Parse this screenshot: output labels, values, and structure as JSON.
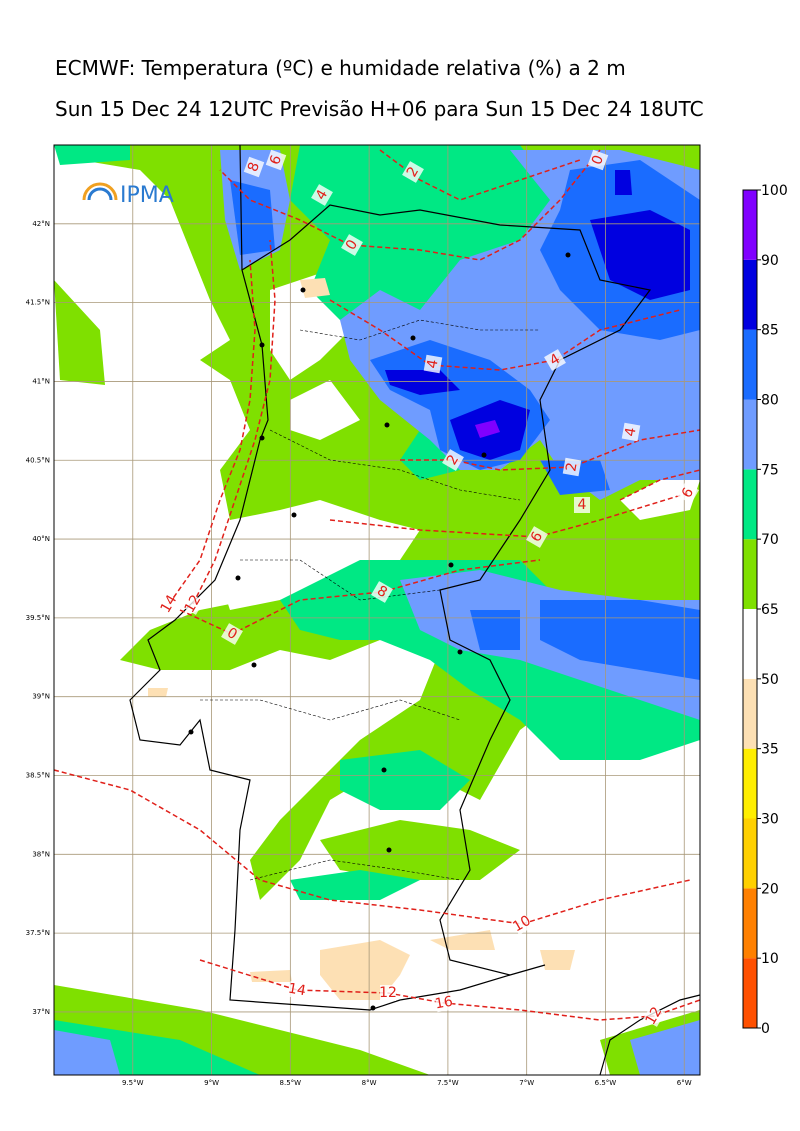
{
  "title": "ECMWF: Temperatura (ºC) e humidade relativa (%) a 2 m",
  "subtitle": "Sun 15 Dec 24 12UTC Previsão H+06 para Sun 15 Dec 24 18UTC",
  "logo": "IPMA",
  "map": {
    "lonlim": [
      -10,
      -5.9
    ],
    "latlim": [
      36.6,
      42.5
    ],
    "lon_ticks": [
      {
        "value": -9.5,
        "label": "9.5°W"
      },
      {
        "value": -9,
        "label": "9°W"
      },
      {
        "value": -8.5,
        "label": "8.5°W"
      },
      {
        "value": -8,
        "label": "8°W"
      },
      {
        "value": -7.5,
        "label": "7.5°W"
      },
      {
        "value": -7,
        "label": "7°W"
      },
      {
        "value": -6.5,
        "label": "6.5°W"
      },
      {
        "value": -6,
        "label": "6°W"
      }
    ],
    "lat_ticks": [
      {
        "value": 42,
        "label": "42°N"
      },
      {
        "value": 41.5,
        "label": "41.5°N"
      },
      {
        "value": 41,
        "label": "41°N"
      },
      {
        "value": 40.5,
        "label": "40.5°N"
      },
      {
        "value": 40,
        "label": "40°N"
      },
      {
        "value": 39.5,
        "label": "39.5°N"
      },
      {
        "value": 39,
        "label": "39°N"
      },
      {
        "value": 38.5,
        "label": "38.5°N"
      },
      {
        "value": 38,
        "label": "38°N"
      },
      {
        "value": 37.5,
        "label": "37.5°N"
      },
      {
        "value": 37,
        "label": "37°N"
      }
    ],
    "contour_labels": [
      0,
      2,
      4,
      8,
      6,
      0,
      4,
      4,
      4,
      2,
      4,
      2,
      6,
      6,
      8,
      10,
      12,
      14,
      16,
      14,
      12,
      0,
      12
    ]
  },
  "colorbar": {
    "levels": [
      0,
      10,
      20,
      30,
      35,
      50,
      65,
      70,
      75,
      80,
      85,
      90,
      100
    ],
    "colors": [
      "#ff5000",
      "#ff8000",
      "#ffd000",
      "#ffee00",
      "#fde0b4",
      "#ffffff",
      "#7fe000",
      "#00e884",
      "#6f9cff",
      "#1a6cff",
      "#0000e0",
      "#8000ff"
    ]
  }
}
